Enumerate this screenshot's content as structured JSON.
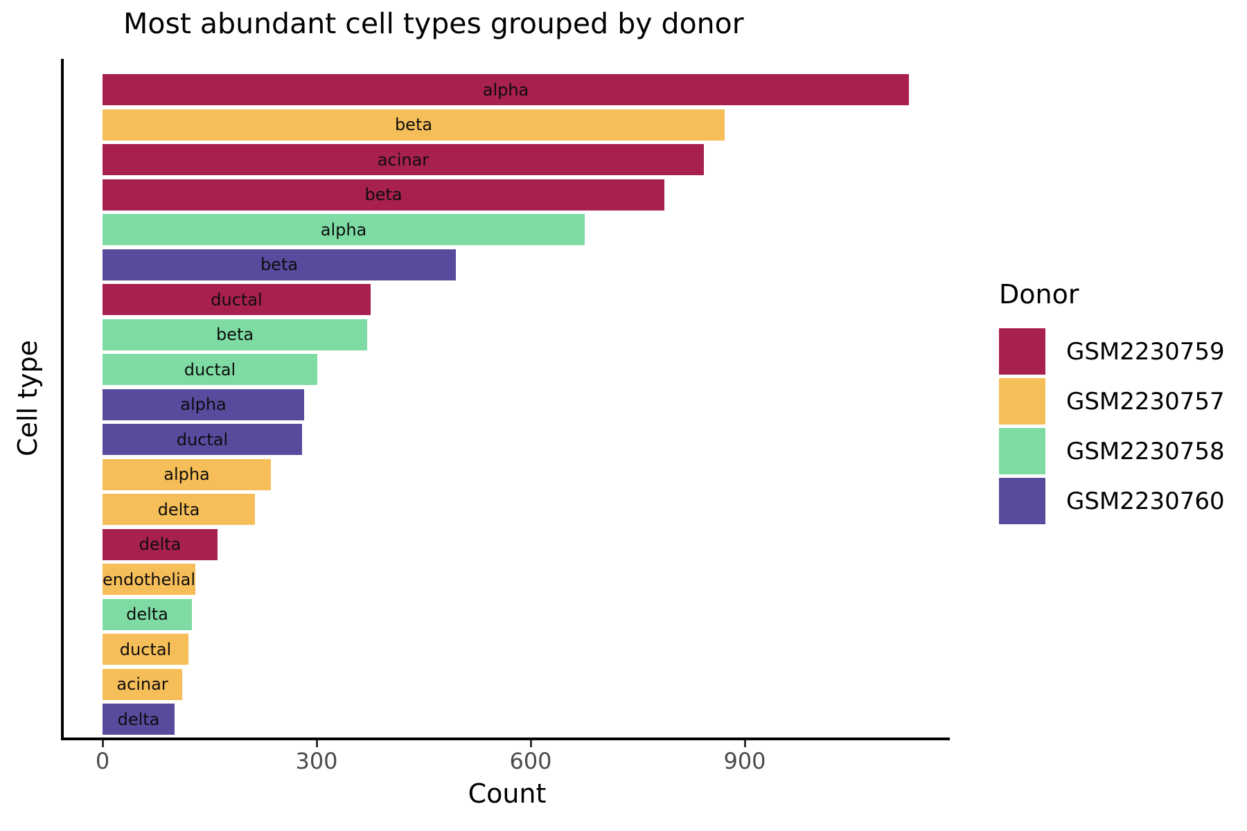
{
  "title": "Most abundant cell types grouped by donor",
  "axes": {
    "x_label": "Count",
    "y_label": "Cell type",
    "x_ticks": [
      0,
      300,
      600,
      900
    ]
  },
  "legend": {
    "title": "Donor",
    "entries": [
      {
        "label": "GSM2230759",
        "color": "#A8204D"
      },
      {
        "label": "GSM2230757",
        "color": "#F6BE58"
      },
      {
        "label": "GSM2230758",
        "color": "#7EDBA4"
      },
      {
        "label": "GSM2230760",
        "color": "#584A9D"
      }
    ]
  },
  "chart_data": {
    "type": "bar",
    "orientation": "horizontal",
    "title": "Most abundant cell types grouped by donor",
    "xlabel": "Count",
    "ylabel": "Cell type",
    "xlim": [
      0,
      1190
    ],
    "x_ticks": [
      0,
      300,
      600,
      900
    ],
    "grid": false,
    "legend_position": "right",
    "legend_title": "Donor",
    "bar_label_position": "center-inside",
    "donor_colors": {
      "GSM2230759": "#A8204D",
      "GSM2230757": "#F6BE58",
      "GSM2230758": "#7EDBA4",
      "GSM2230760": "#584A9D"
    },
    "bars": [
      {
        "cell_type": "alpha",
        "donor": "GSM2230759",
        "count": 1130
      },
      {
        "cell_type": "beta",
        "donor": "GSM2230757",
        "count": 872
      },
      {
        "cell_type": "acinar",
        "donor": "GSM2230759",
        "count": 843
      },
      {
        "cell_type": "beta",
        "donor": "GSM2230759",
        "count": 787
      },
      {
        "cell_type": "alpha",
        "donor": "GSM2230758",
        "count": 676
      },
      {
        "cell_type": "beta",
        "donor": "GSM2230760",
        "count": 495
      },
      {
        "cell_type": "ductal",
        "donor": "GSM2230759",
        "count": 376
      },
      {
        "cell_type": "beta",
        "donor": "GSM2230758",
        "count": 371
      },
      {
        "cell_type": "ductal",
        "donor": "GSM2230758",
        "count": 301
      },
      {
        "cell_type": "alpha",
        "donor": "GSM2230760",
        "count": 283
      },
      {
        "cell_type": "ductal",
        "donor": "GSM2230760",
        "count": 280
      },
      {
        "cell_type": "alpha",
        "donor": "GSM2230757",
        "count": 236
      },
      {
        "cell_type": "delta",
        "donor": "GSM2230757",
        "count": 214
      },
      {
        "cell_type": "delta",
        "donor": "GSM2230759",
        "count": 161
      },
      {
        "cell_type": "endothelial",
        "donor": "GSM2230757",
        "count": 130
      },
      {
        "cell_type": "delta",
        "donor": "GSM2230758",
        "count": 125
      },
      {
        "cell_type": "ductal",
        "donor": "GSM2230757",
        "count": 120
      },
      {
        "cell_type": "acinar",
        "donor": "GSM2230757",
        "count": 112
      },
      {
        "cell_type": "delta",
        "donor": "GSM2230760",
        "count": 101
      }
    ]
  }
}
